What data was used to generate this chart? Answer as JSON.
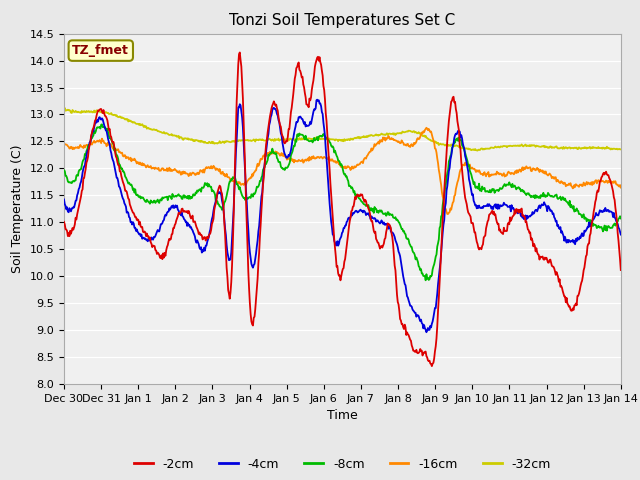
{
  "title": "Tonzi Soil Temperatures Set C",
  "xlabel": "Time",
  "ylabel": "Soil Temperature (C)",
  "ylim": [
    8.0,
    14.5
  ],
  "yticks": [
    8.0,
    8.5,
    9.0,
    9.5,
    10.0,
    10.5,
    11.0,
    11.5,
    12.0,
    12.5,
    13.0,
    13.5,
    14.0,
    14.5
  ],
  "xtick_labels": [
    "Dec 30",
    "Dec 31",
    "Jan 1",
    "Jan 2",
    "Jan 3",
    "Jan 4",
    "Jan 5",
    "Jan 6",
    "Jan 7",
    "Jan 8",
    "Jan 9",
    "Jan 10",
    "Jan 11",
    "Jan 12",
    "Jan 13",
    "Jan 14"
  ],
  "line_colors": {
    "-2cm": "#dd0000",
    "-4cm": "#0000dd",
    "-8cm": "#00bb00",
    "-16cm": "#ff8800",
    "-32cm": "#cccc00"
  },
  "annotation_text": "TZ_fmet",
  "annotation_color": "#880000",
  "annotation_bg": "#ffffcc",
  "annotation_border": "#888800",
  "bg_color": "#e8e8e8",
  "plot_bg_color": "#f0f0f0",
  "grid_color": "#ffffff",
  "linewidth": 1.3,
  "title_fontsize": 11,
  "axis_fontsize": 9,
  "tick_fontsize": 8
}
